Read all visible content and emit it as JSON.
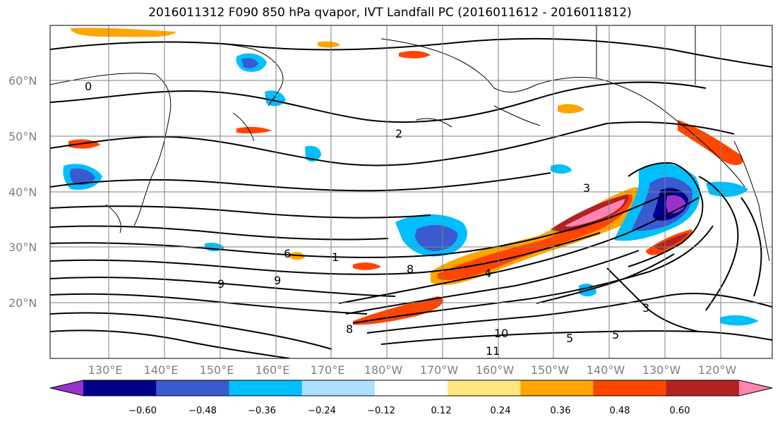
{
  "title": "2016011312 F090 850 hPa qvapor, IVT Landfall PC (2016011612 - 2016011812)",
  "lat_labels": [
    "60°N",
    "50°N",
    "40°N",
    "30°N",
    "20°N"
  ],
  "lon_labels": [
    "130°E",
    "140°E",
    "150°E",
    "160°E",
    "170°E",
    "180°W",
    "170°W",
    "160°W",
    "150°W",
    "140°W",
    "130°W",
    "120°W"
  ],
  "colorbar": {
    "ticks": [
      "−0.60",
      "−0.48",
      "−0.36",
      "−0.24",
      "−0.12",
      "0.12",
      "0.24",
      "0.36",
      "0.48",
      "0.60"
    ],
    "colors": [
      "#9932cc",
      "#00008b",
      "#3a5bcf",
      "#00bfff",
      "#b0e0ff",
      "#ffffff",
      "#ffe680",
      "#ffa500",
      "#ff4500",
      "#b22222",
      "#ff85b0"
    ]
  },
  "contour_labels": [
    "0",
    "1",
    "2",
    "3",
    "3",
    "4",
    "5",
    "5",
    "6",
    "8",
    "8",
    "9",
    "9",
    "10",
    "11"
  ]
}
